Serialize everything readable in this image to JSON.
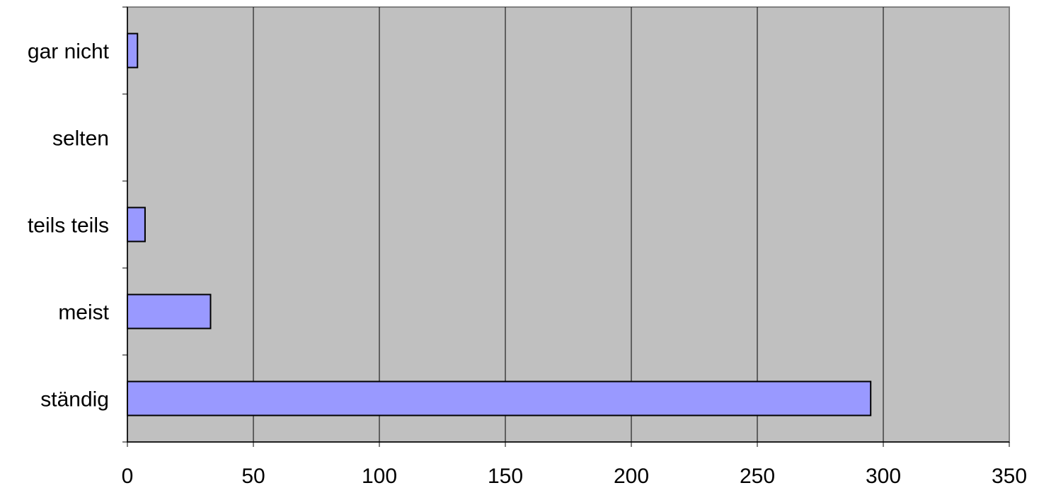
{
  "chart_data": {
    "type": "bar",
    "orientation": "horizontal",
    "categories": [
      "gar nicht",
      "selten",
      "teils teils",
      "meist",
      "ständig"
    ],
    "values": [
      4,
      0,
      7,
      33,
      295
    ],
    "xlim": [
      0,
      350
    ],
    "x_ticks": [
      0,
      50,
      100,
      150,
      200,
      250,
      300,
      350
    ],
    "title": "",
    "xlabel": "",
    "ylabel": "",
    "grid": "vertical",
    "legend": "none",
    "colors": {
      "bar_fill": "#9999ff",
      "bar_stroke": "#000000",
      "plot_background": "#c0c0c0",
      "gridline": "#000000",
      "axis": "#000000"
    }
  }
}
